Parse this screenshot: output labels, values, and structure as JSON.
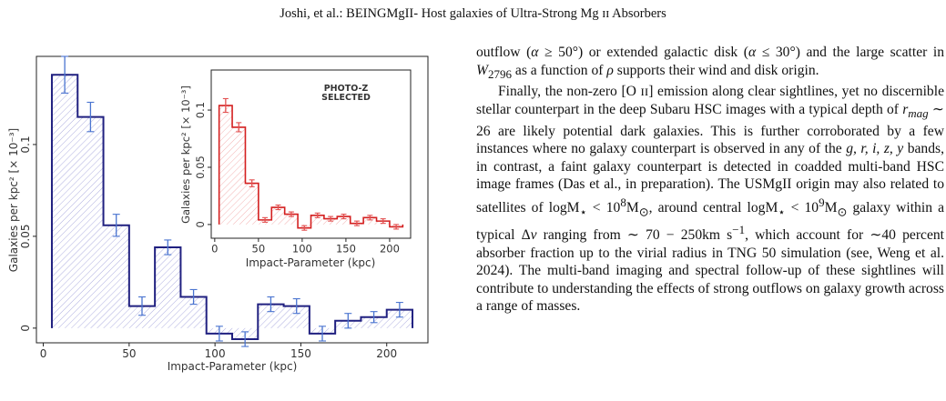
{
  "header": {
    "running_title": "Joshi, et al.: BEINGMgII- Host galaxies of Ultra-Strong Mg ɪɪ Absorbers"
  },
  "figure": {
    "main": {
      "xlabel": "Impact-Parameter (kpc)",
      "ylabel": "Galaxies per kpc² [× 10⁻³]",
      "xticks": [
        "0",
        "50",
        "100",
        "150",
        "200"
      ],
      "yticks": [
        "0",
        "0.05",
        "0.1"
      ]
    },
    "inset": {
      "label_line1": "PHOTO-Z",
      "label_line2": "SELECTED",
      "xlabel": "Impact-Parameter (kpc)",
      "ylabel": "Galaxies per kpc² [× 10⁻³]",
      "xticks": [
        "0",
        "50",
        "100",
        "150",
        "200"
      ],
      "yticks": [
        "0",
        "0.05",
        "0.1"
      ]
    }
  },
  "chart_data": [
    {
      "type": "bar",
      "title": "",
      "xlabel": "Impact-Parameter (kpc)",
      "ylabel": "Galaxies per kpc² [× 10⁻³]",
      "xlim": [
        -4,
        224
      ],
      "ylim": [
        -0.008,
        0.148
      ],
      "bin_edges": [
        5,
        20,
        35,
        50,
        65,
        80,
        95,
        110,
        125,
        140,
        155,
        170,
        185,
        200,
        215
      ],
      "values": [
        0.138,
        0.115,
        0.056,
        0.012,
        0.044,
        0.017,
        -0.003,
        -0.006,
        0.013,
        0.012,
        -0.003,
        0.004,
        0.006,
        0.01
      ],
      "errors": [
        0.01,
        0.008,
        0.006,
        0.005,
        0.004,
        0.004,
        0.004,
        0.004,
        0.004,
        0.004,
        0.004,
        0.004,
        0.003,
        0.004
      ],
      "color": "#202080",
      "error_color": "#4a74d0"
    },
    {
      "type": "bar",
      "title": "",
      "xlabel": "Impact-Parameter (kpc)",
      "ylabel": "Galaxies per kpc² [× 10⁻³]",
      "xlim": [
        -4,
        224
      ],
      "ylim": [
        -0.012,
        0.135
      ],
      "bin_edges": [
        5,
        20,
        35,
        50,
        65,
        80,
        95,
        110,
        125,
        140,
        155,
        170,
        185,
        200,
        215
      ],
      "values": [
        0.104,
        0.085,
        0.036,
        0.004,
        0.015,
        0.009,
        -0.003,
        0.008,
        0.005,
        0.007,
        0.001,
        0.006,
        0.003,
        -0.002
      ],
      "errors": [
        0.006,
        0.004,
        0.003,
        0.002,
        0.002,
        0.002,
        0.002,
        0.002,
        0.002,
        0.002,
        0.002,
        0.002,
        0.002,
        0.002
      ],
      "color": "#d42020",
      "error_color": "#e35050"
    }
  ],
  "body_text": {
    "p1_a": "outflow (",
    "p1_alpha1": "α",
    "p1_b": " ≥ 50°) or extended galactic disk (",
    "p1_alpha2": "α",
    "p1_c": " ≤ 30°) and the large scatter in ",
    "p1_w": "W",
    "p1_wsub": "2796",
    "p1_d": " as a function of ",
    "p1_rho": "ρ",
    "p1_e": " supports their wind and disk origin.",
    "p2_a": "Finally, the non-zero [O ɪɪ] emission along clear sightlines, yet no discernible stellar counterpart in the deep Subaru HSC images with a typical depth of ",
    "p2_r": "r",
    "p2_rsub": "mag",
    "p2_b": " ∼ 26 are likely potential dark galaxies. This is further corroborated by a few instances where no galaxy counterpart is observed in any of the ",
    "p2_bands": "g, r, i, z, y",
    "p2_c": " bands, in contrast, a faint galaxy counterpart is detected in coadded multi-band HSC image frames (Das et al., in preparation). The USMgII origin may also related to satellites of logM",
    "p2_star1": "⋆",
    "p2_d": " < 10",
    "p2_exp1": "8",
    "p2_e": "M",
    "p2_sun1": "⊙",
    "p2_f": ", around central logM",
    "p2_star2": "⋆",
    "p2_g": " < 10",
    "p2_exp2": "9",
    "p2_h": "M",
    "p2_sun2": "⊙",
    "p2_i": " galaxy within a typical Δ",
    "p2_v": "v",
    "p2_j": " ranging from ∼ 70 − 250km s",
    "p2_exp3": "−1",
    "p2_k": ", which account for ∼40 percent absorber fraction up to the virial radius in TNG 50 simulation (see, Weng et al. 2024). The multi-band imaging and spectral follow-up of these sightlines will contribute to understanding the effects of strong outflows on galaxy growth across a range of masses."
  }
}
